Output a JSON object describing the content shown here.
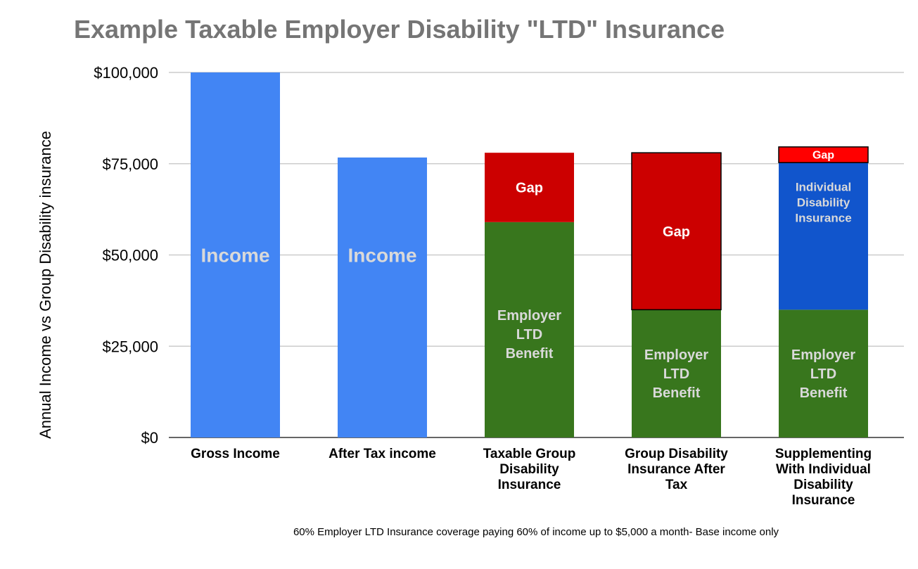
{
  "chart_data": {
    "type": "bar",
    "stacked": true,
    "title": "Example Taxable Employer Disability \"LTD\" Insurance",
    "ylabel": "Annual Income vs Group Disability insurance",
    "xlabel": "",
    "footnote": "60% Employer LTD Insurance coverage paying 60% of income up to $5,000 a month- Base income only",
    "ylim": [
      0,
      100000
    ],
    "yticks": [
      0,
      25000,
      50000,
      75000,
      100000
    ],
    "ytick_labels": [
      "$0",
      "$25,000",
      "$50,000",
      "$75,000",
      "$100,000"
    ],
    "grid": true,
    "categories": [
      "Gross Income",
      "After Tax income",
      "Taxable Group\nDisability\nInsurance",
      "Group Disability\nInsurance After\nTax",
      "Supplementing\nWith Individual\nDisability\nInsurance"
    ],
    "stacks": [
      [
        {
          "series": "Income",
          "value": 100000,
          "label": "Income",
          "color": "#4285f4",
          "text_color": "#d9d9d9"
        }
      ],
      [
        {
          "series": "Income",
          "value": 76700,
          "label": "Income",
          "color": "#4285f4",
          "text_color": "#d9d9d9"
        }
      ],
      [
        {
          "series": "Employer LTD Benefit",
          "value": 59000,
          "label": "Employer\nLTD\nBenefit",
          "color": "#38761d",
          "text_color": "#d9d9d9"
        },
        {
          "series": "Gap",
          "value": 19000,
          "label": "Gap",
          "color": "#cc0000",
          "text_color": "#ffffff"
        }
      ],
      [
        {
          "series": "Employer LTD Benefit",
          "value": 35000,
          "label": "Employer\nLTD\nBenefit",
          "color": "#38761d",
          "text_color": "#d9d9d9"
        },
        {
          "series": "Gap",
          "value": 43000,
          "label": "Gap",
          "color": "#cc0000",
          "text_color": "#ffffff",
          "outline": "#000000"
        }
      ],
      [
        {
          "series": "Employer LTD Benefit",
          "value": 35000,
          "label": "Employer\nLTD\nBenefit",
          "color": "#38761d",
          "text_color": "#d9d9d9"
        },
        {
          "series": "Individual Disability Insurance",
          "value": 40300,
          "label": "Individual\nDisability\nInsurance",
          "color": "#1155cc",
          "text_color": "#d9d9d9"
        },
        {
          "series": "Gap",
          "value": 4300,
          "label": "Gap",
          "color": "#ff0000",
          "text_color": "#ffffff",
          "outline": "#000000"
        }
      ]
    ]
  }
}
